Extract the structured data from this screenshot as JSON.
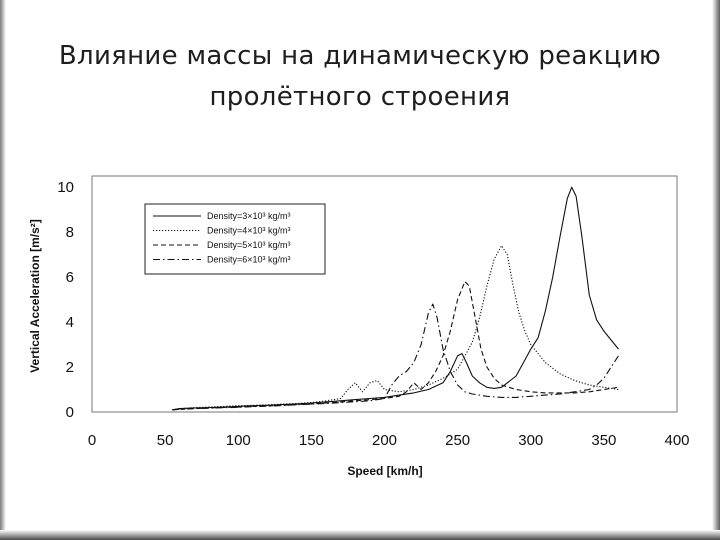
{
  "slide": {
    "title_line1": "Влияние массы на динамическую реакцию",
    "title_line2": "пролётного строения"
  },
  "chart_data": {
    "type": "line",
    "title": "",
    "xlabel": "Speed [km/h]",
    "ylabel": "Vertical Acceleration [m/s²]",
    "xlim": [
      0,
      400
    ],
    "ylim": [
      0,
      10.5
    ],
    "xticks": [
      0,
      50,
      100,
      150,
      200,
      250,
      300,
      350,
      400
    ],
    "yticks": [
      0,
      2,
      4,
      6,
      8,
      10
    ],
    "grid": false,
    "legend_position": "top-left",
    "series": [
      {
        "name": "Density=3×10³ kg/m³",
        "dash": "solid",
        "x": [
          55,
          60,
          70,
          80,
          90,
          100,
          110,
          120,
          130,
          140,
          150,
          160,
          170,
          180,
          190,
          200,
          210,
          220,
          230,
          240,
          245,
          250,
          253,
          256,
          260,
          265,
          270,
          275,
          280,
          290,
          300,
          305,
          310,
          315,
          320,
          325,
          328,
          331,
          335,
          340,
          345,
          350,
          355,
          360
        ],
        "y": [
          0.1,
          0.15,
          0.18,
          0.2,
          0.22,
          0.25,
          0.28,
          0.3,
          0.33,
          0.36,
          0.4,
          0.45,
          0.5,
          0.55,
          0.6,
          0.65,
          0.75,
          0.85,
          1.0,
          1.3,
          1.8,
          2.5,
          2.6,
          2.2,
          1.6,
          1.3,
          1.1,
          1.05,
          1.1,
          1.6,
          2.8,
          3.3,
          4.5,
          6.0,
          7.8,
          9.5,
          10.0,
          9.6,
          7.8,
          5.2,
          4.1,
          3.6,
          3.2,
          2.8
        ]
      },
      {
        "name": "Density=4×10³ kg/m³",
        "dash": "dotted",
        "x": [
          55,
          60,
          70,
          80,
          90,
          100,
          110,
          120,
          130,
          140,
          150,
          160,
          170,
          175,
          180,
          185,
          190,
          195,
          200,
          210,
          220,
          230,
          240,
          250,
          260,
          265,
          270,
          275,
          280,
          284,
          288,
          292,
          296,
          300,
          310,
          320,
          330,
          340,
          350,
          360
        ],
        "y": [
          0.1,
          0.15,
          0.2,
          0.22,
          0.25,
          0.28,
          0.3,
          0.32,
          0.35,
          0.38,
          0.42,
          0.5,
          0.6,
          1.0,
          1.3,
          0.9,
          1.3,
          1.4,
          1.0,
          0.9,
          1.0,
          1.2,
          1.5,
          1.9,
          3.1,
          4.2,
          5.6,
          6.8,
          7.4,
          7.0,
          5.6,
          4.4,
          3.6,
          3.0,
          2.2,
          1.7,
          1.4,
          1.2,
          1.1,
          1.0
        ]
      },
      {
        "name": "Density=5×10³ kg/m³",
        "dash": "dashed",
        "x": [
          55,
          60,
          70,
          80,
          90,
          100,
          110,
          120,
          130,
          140,
          150,
          160,
          170,
          180,
          190,
          200,
          210,
          215,
          220,
          225,
          230,
          235,
          240,
          245,
          250,
          255,
          258,
          262,
          266,
          270,
          275,
          280,
          290,
          300,
          310,
          320,
          330,
          340,
          350,
          355,
          360
        ],
        "y": [
          0.1,
          0.12,
          0.15,
          0.18,
          0.2,
          0.22,
          0.25,
          0.27,
          0.3,
          0.33,
          0.36,
          0.4,
          0.45,
          0.5,
          0.55,
          0.6,
          0.7,
          0.9,
          1.3,
          1.0,
          1.3,
          1.8,
          2.5,
          3.6,
          5.0,
          5.8,
          5.6,
          4.2,
          2.8,
          2.0,
          1.5,
          1.2,
          1.0,
          0.9,
          0.85,
          0.85,
          0.85,
          0.9,
          1.0,
          1.05,
          1.1
        ]
      },
      {
        "name": "Density=6×10³ kg/m³",
        "dash": "dash-dot",
        "x": [
          55,
          60,
          70,
          80,
          90,
          100,
          110,
          120,
          130,
          140,
          150,
          160,
          170,
          180,
          190,
          200,
          205,
          210,
          215,
          220,
          225,
          230,
          233,
          236,
          240,
          245,
          250,
          255,
          260,
          270,
          280,
          290,
          300,
          310,
          320,
          330,
          340,
          345,
          350,
          355,
          360
        ],
        "y": [
          0.1,
          0.12,
          0.15,
          0.17,
          0.19,
          0.21,
          0.24,
          0.26,
          0.29,
          0.32,
          0.35,
          0.38,
          0.42,
          0.46,
          0.5,
          0.6,
          1.2,
          1.6,
          1.8,
          2.2,
          3.0,
          4.4,
          4.8,
          4.2,
          2.8,
          1.8,
          1.2,
          0.9,
          0.8,
          0.7,
          0.65,
          0.65,
          0.7,
          0.75,
          0.8,
          0.9,
          1.0,
          1.2,
          1.5,
          2.0,
          2.5
        ]
      }
    ]
  }
}
